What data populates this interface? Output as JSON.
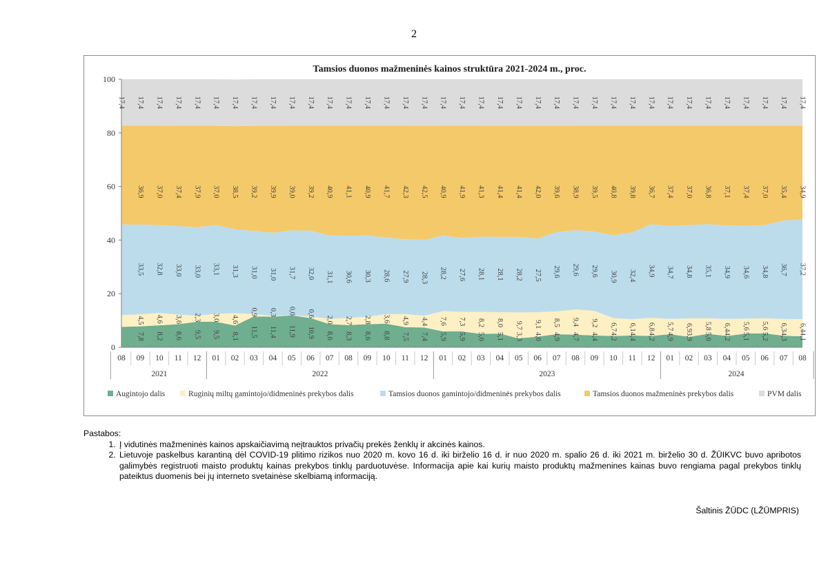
{
  "page": {
    "number": "2"
  },
  "notes": {
    "heading": "Pastabos:",
    "items": [
      "Į vidutinės mažmeninės kainos apskaičiavimą neįtrauktos privačių prekės ženklų ir akcinės kainos.",
      "Lietuvoje paskelbus karantiną dėl COVID-19 plitimo rizikos nuo 2020 m. kovo 16 d. iki birželio 16 d. ir nuo 2020 m. spalio 26 d. iki 2021 m. birželio 30 d. ŽŪIKVC buvo apribotos galimybės registruoti maisto produktų kainas prekybos tinklų parduotuvėse. Informacija apie kai kurių maisto produktų mažmenines kainas buvo rengiama pagal prekybos tinklų pateiktus duomenis bei jų interneto svetainėse skelbiamą informaciją."
    ],
    "source": "Šaltinis ŽŪDC (LŽŪMPRIS)"
  },
  "chart_data": {
    "type": "area",
    "stacked": true,
    "title": "Tamsios duonos mažmeninės  kainos struktūra 2021-2024 m., proc.",
    "ylim": [
      0,
      100
    ],
    "yticks": [
      0,
      20,
      40,
      60,
      80,
      100
    ],
    "grid": false,
    "legend_position": "bottom",
    "x": [
      "08",
      "09",
      "10",
      "11",
      "12",
      "01",
      "02",
      "03",
      "04",
      "05",
      "06",
      "07",
      "08",
      "09",
      "10",
      "11",
      "12",
      "01",
      "02",
      "03",
      "04",
      "05",
      "06",
      "07",
      "08",
      "09",
      "10",
      "11",
      "12",
      "01",
      "02",
      "03",
      "04",
      "05",
      "06",
      "07",
      "08"
    ],
    "years": [
      {
        "label": "2021",
        "count": 5
      },
      {
        "label": "2022",
        "count": 12
      },
      {
        "label": "2023",
        "count": 12
      },
      {
        "label": "2024",
        "count": 8
      }
    ],
    "series": [
      {
        "name": "Augintojo dalis",
        "color": "#6fae8f",
        "values": [
          7.6,
          7.8,
          8.2,
          8.6,
          9.5,
          9.5,
          8.1,
          11.5,
          11.4,
          11.9,
          10.9,
          8.6,
          8.3,
          8.6,
          8.8,
          7.5,
          7.4,
          5.9,
          5.9,
          5.0,
          5.1,
          3.3,
          4.0,
          4.9,
          4.7,
          4.4,
          4.2,
          4.4,
          4.2,
          4.9,
          3.9,
          5.0,
          4.2,
          5.1,
          5.2,
          4.3,
          4.1
        ],
        "labels": [
          "",
          "7,8",
          "8,2",
          "8,6",
          "9,5",
          "9,5",
          "8,1",
          "11,5",
          "11,4",
          "11,9",
          "10,9",
          "8,6",
          "8,3",
          "8,6",
          "8,8",
          "7,5",
          "7,4",
          "5,9",
          "5,9",
          "5,0",
          "5,1",
          "3,3",
          "4,0",
          "4,9",
          "4,7",
          "4,4",
          "4,2",
          "4,4",
          "4,2",
          "4,9",
          "3,9",
          "5,0",
          "4,2",
          "5,1",
          "5,2",
          "4,3",
          "4,1"
        ]
      },
      {
        "name": "Ruginių miltų gamintojo/didmeninės  prekybos dalis",
        "color": "#fdf0c4",
        "values": [
          4.4,
          4.5,
          4.6,
          3.6,
          2.3,
          3.0,
          4.6,
          0.9,
          0.3,
          0.0,
          0.6,
          2.0,
          2.7,
          2.8,
          3.6,
          4.9,
          4.4,
          7.6,
          7.3,
          8.2,
          8.0,
          9.7,
          9.1,
          8.5,
          9.4,
          9.2,
          6.7,
          6.1,
          6.8,
          5.7,
          6.9,
          5.8,
          6.4,
          5.6,
          5.6,
          6.3,
          6.4
        ],
        "labels": [
          "",
          "4,5",
          "4,6",
          "3,6",
          "2,3",
          "3,0",
          "4,6",
          "0,9",
          "0,3",
          "0,0",
          "0,6",
          "2,0",
          "2,7",
          "2,8",
          "3,6",
          "4,9",
          "4,4",
          "7,6",
          "7,3",
          "8,2",
          "8,0",
          "9,7",
          "9,1",
          "8,5",
          "9,4",
          "9,2",
          "6,7",
          "6,1",
          "6,8",
          "5,7",
          "6,9",
          "5,8",
          "6,4",
          "5,6",
          "5,6",
          "6,3",
          "6,4"
        ]
      },
      {
        "name": "Tamsios duonos gamintojo/didmeninės prekybos dalis",
        "color": "#bcdcec",
        "values": [
          33.8,
          33.5,
          32.8,
          33.0,
          33.0,
          33.1,
          31.3,
          31.0,
          31.0,
          31.7,
          32.0,
          31.1,
          30.6,
          30.3,
          28.6,
          27.9,
          28.3,
          28.2,
          27.6,
          28.1,
          28.1,
          28.2,
          27.5,
          29.6,
          29.6,
          29.6,
          30.9,
          32.4,
          34.9,
          34.7,
          34.8,
          35.1,
          34.9,
          34.6,
          34.8,
          36.7,
          37.2
        ],
        "labels": [
          "",
          "33,5",
          "32,8",
          "33,0",
          "33,0",
          "33,1",
          "31,3",
          "31,0",
          "31,0",
          "31,7",
          "32,0",
          "31,1",
          "30,6",
          "30,3",
          "28,6",
          "27,9",
          "28,3",
          "28,2",
          "27,6",
          "28,1",
          "28,1",
          "28,2",
          "27,5",
          "29,6",
          "29,6",
          "29,6",
          "30,9",
          "32,4",
          "34,9",
          "34,7",
          "34,8",
          "35,1",
          "34,9",
          "34,6",
          "34,8",
          "36,7",
          "37,2"
        ]
      },
      {
        "name": "Tamsios duonos mažmeninės prekybos dalis",
        "color": "#f4c96a",
        "values": [
          36.8,
          36.9,
          37.0,
          37.4,
          37.9,
          37.0,
          38.5,
          39.2,
          39.9,
          39.0,
          39.2,
          40.9,
          41.1,
          40.9,
          41.7,
          42.3,
          42.5,
          40.9,
          41.9,
          41.3,
          41.4,
          41.4,
          42.0,
          39.6,
          38.9,
          39.5,
          40.8,
          39.8,
          36.7,
          37.4,
          37.0,
          36.8,
          37.1,
          37.4,
          37.0,
          35.4,
          34.9
        ],
        "labels": [
          "",
          "36,9",
          "37,0",
          "37,4",
          "37,9",
          "37,0",
          "38,5",
          "39,2",
          "39,9",
          "39,0",
          "39,2",
          "40,9",
          "41,1",
          "40,9",
          "41,7",
          "42,3",
          "42,5",
          "40,9",
          "41,9",
          "41,3",
          "41,4",
          "41,4",
          "42,0",
          "39,6",
          "38,9",
          "39,5",
          "40,8",
          "39,8",
          "36,7",
          "37,4",
          "37,0",
          "36,8",
          "37,1",
          "37,4",
          "37,0",
          "35,4",
          "34,9"
        ]
      },
      {
        "name": "PVM dalis",
        "color": "#dcdcdc",
        "values": [
          17.4,
          17.4,
          17.4,
          17.4,
          17.4,
          17.4,
          17.4,
          17.4,
          17.4,
          17.4,
          17.4,
          17.4,
          17.4,
          17.4,
          17.4,
          17.4,
          17.4,
          17.4,
          17.4,
          17.4,
          17.4,
          17.4,
          17.4,
          17.4,
          17.4,
          17.4,
          17.4,
          17.4,
          17.4,
          17.4,
          17.4,
          17.4,
          17.4,
          17.4,
          17.4,
          17.4,
          17.4
        ],
        "labels": [
          "17,4",
          "17,4",
          "17,4",
          "17,4",
          "17,4",
          "17,4",
          "17,4",
          "17,4",
          "17,4",
          "17,4",
          "17,4",
          "17,4",
          "17,4",
          "17,4",
          "17,4",
          "17,4",
          "17,4",
          "17,4",
          "17,4",
          "17,4",
          "17,4",
          "17,4",
          "17,4",
          "17,4",
          "17,4",
          "17,4",
          "17,4",
          "17,4",
          "17,4",
          "17,4",
          "17,4",
          "17,4",
          "17,4",
          "17,4",
          "17,4",
          "17,4",
          "17,4"
        ]
      }
    ]
  }
}
